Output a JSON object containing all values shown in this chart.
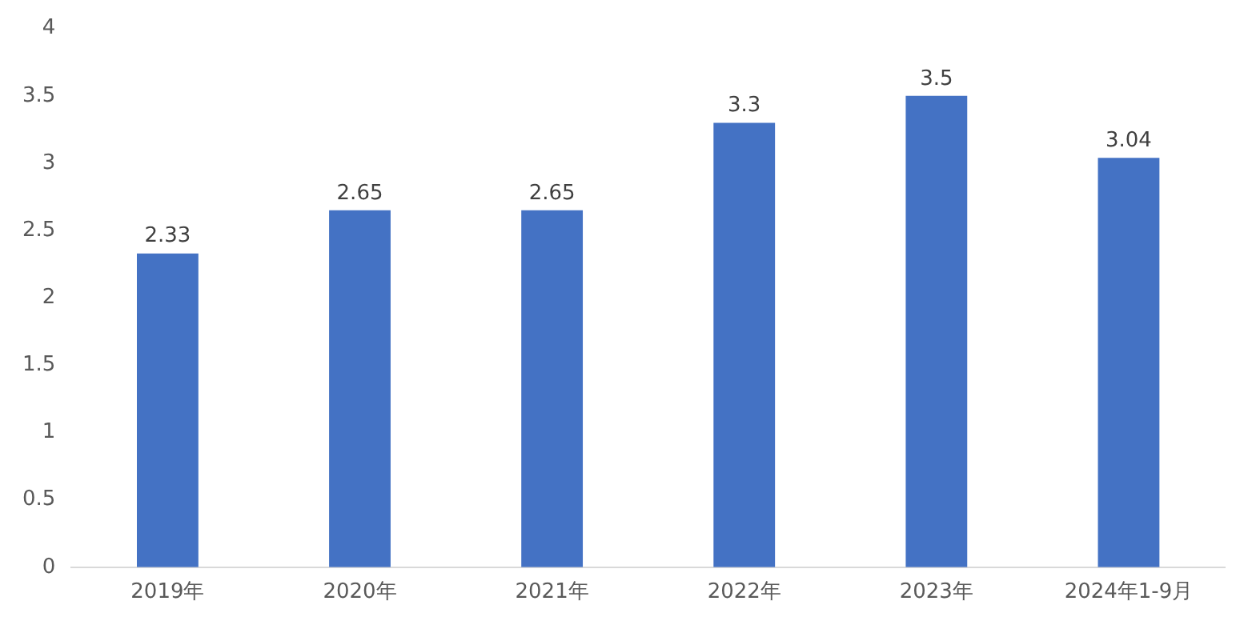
{
  "chart_data": {
    "type": "bar",
    "categories": [
      "2019年",
      "2020年",
      "2021年",
      "2022年",
      "2023年",
      "2024年1-9月"
    ],
    "values": [
      2.33,
      2.65,
      2.65,
      3.3,
      3.5,
      3.04
    ],
    "color": "#4472c4",
    "ylim": [
      0,
      4
    ],
    "yticks": [
      0,
      0.5,
      1,
      1.5,
      2,
      2.5,
      3,
      3.5,
      4
    ],
    "grid": false,
    "legend": false,
    "data_labels": true
  }
}
